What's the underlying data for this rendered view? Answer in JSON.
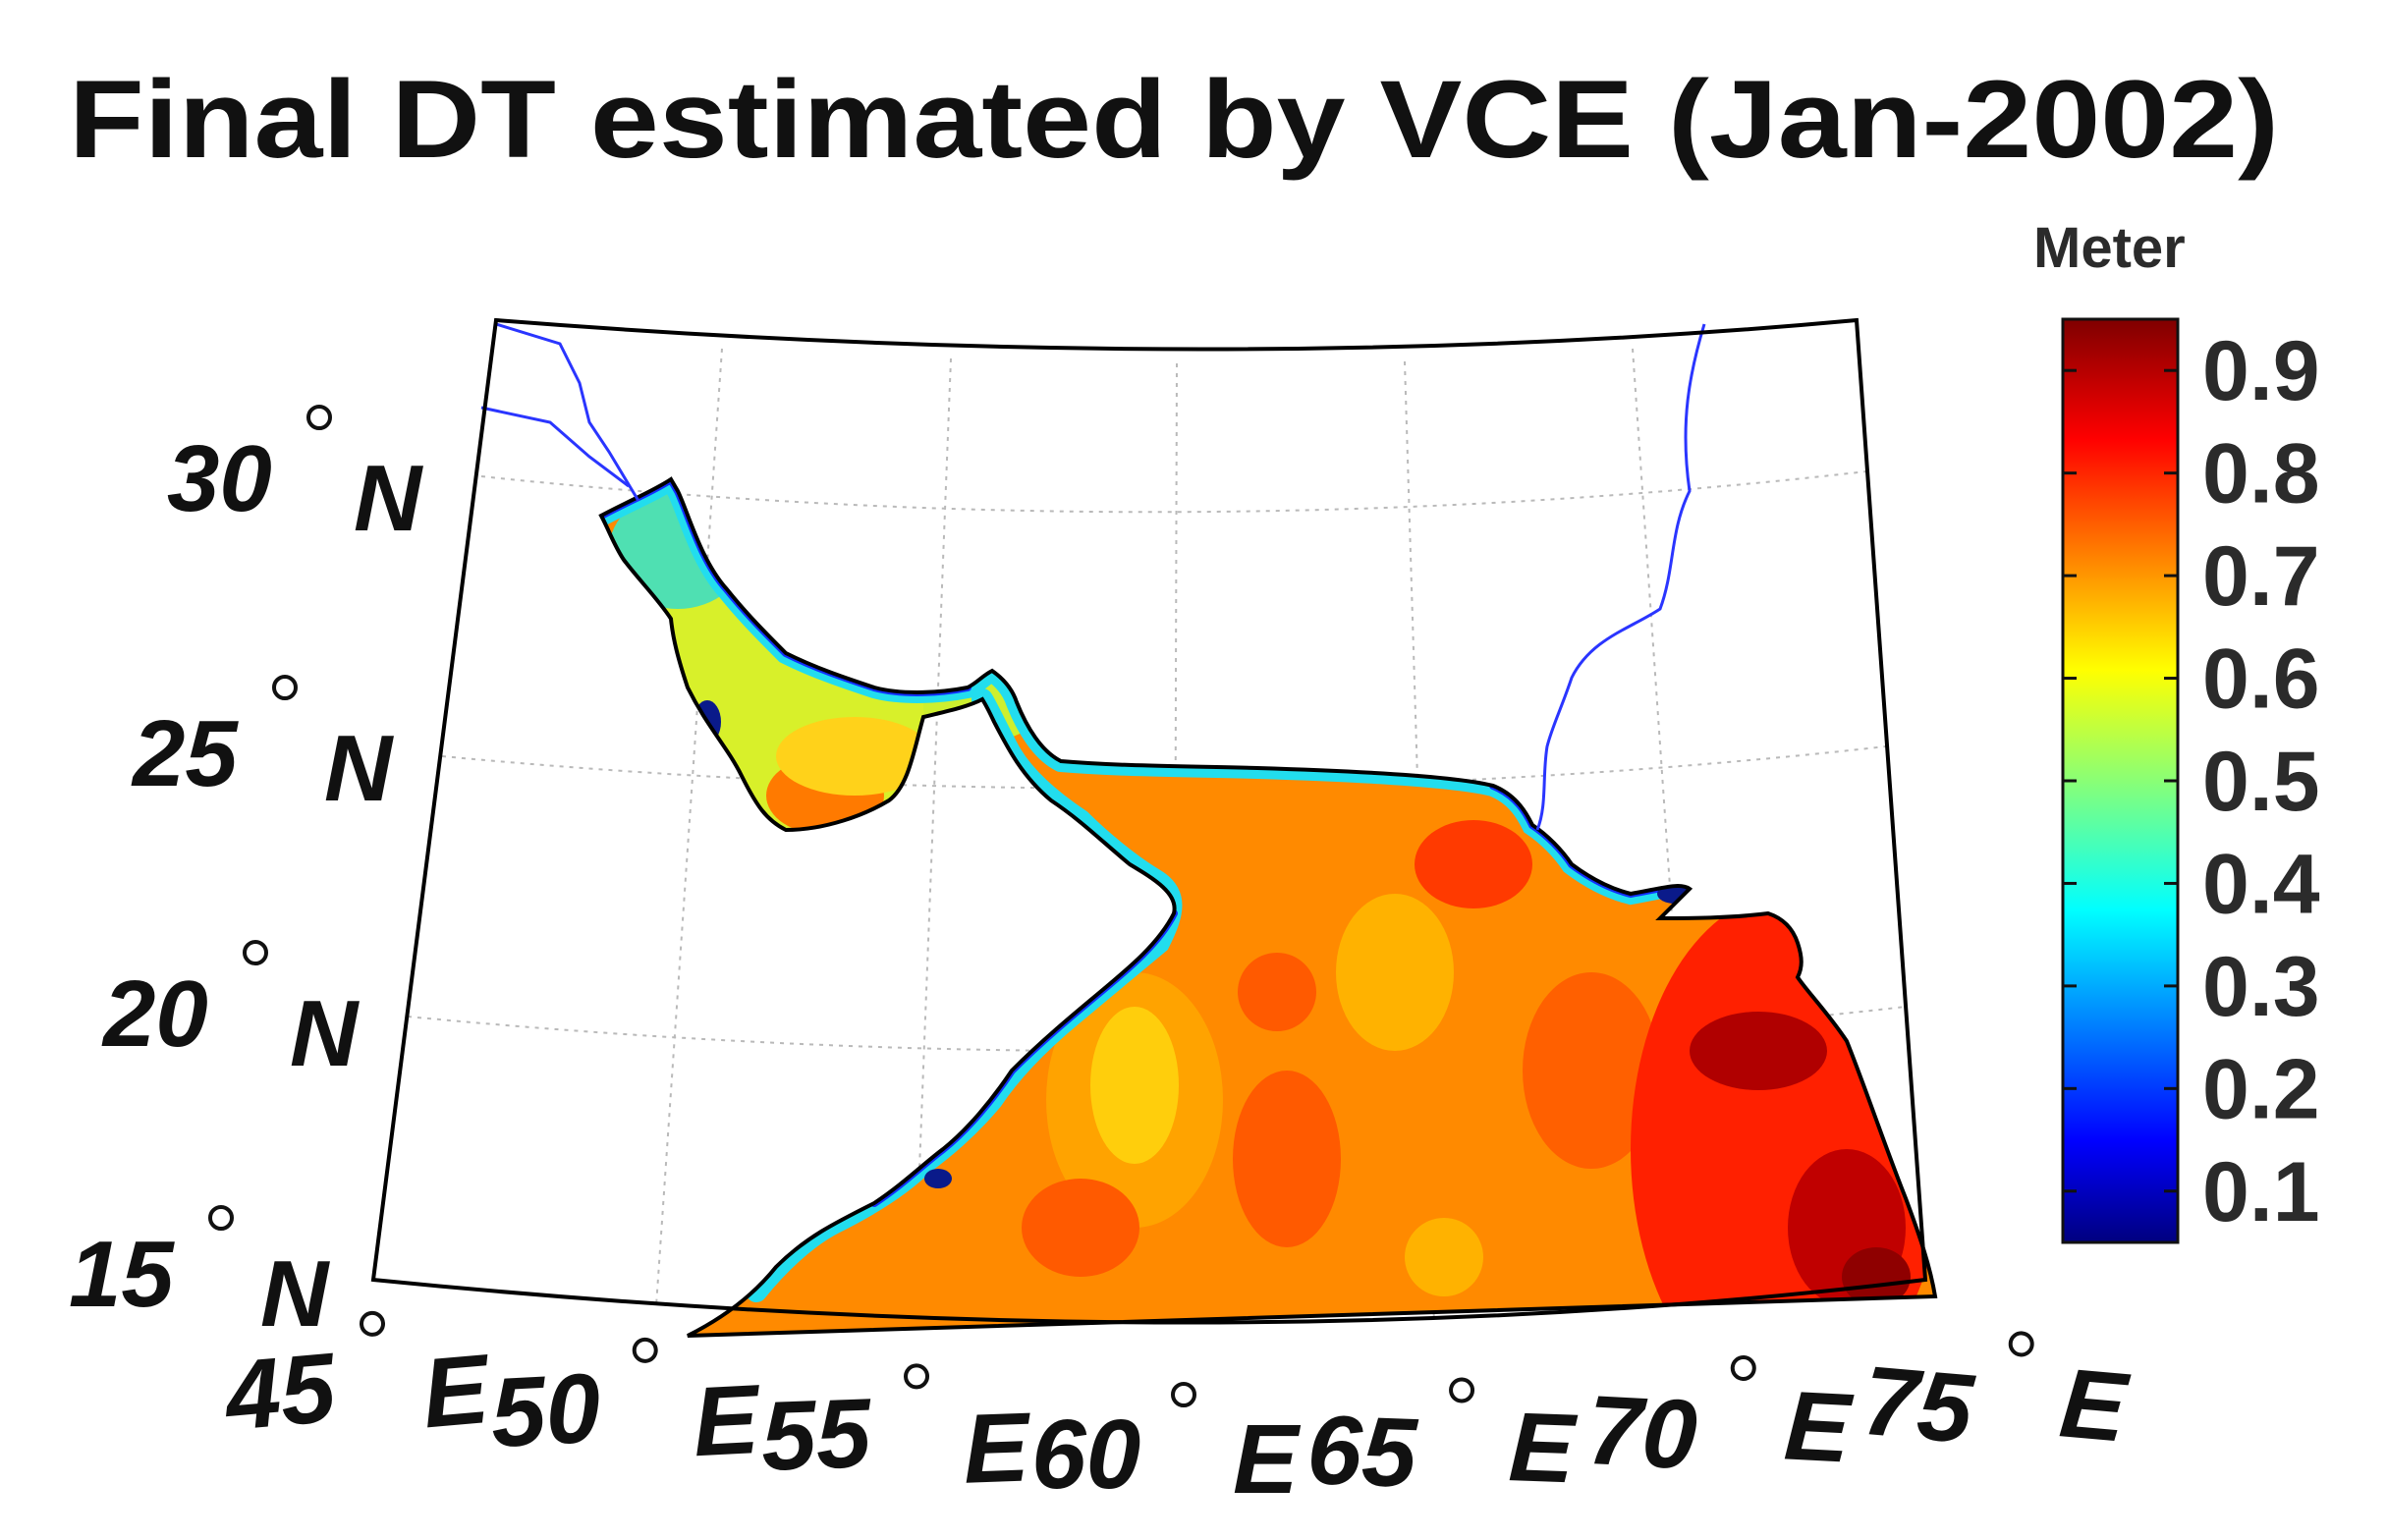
{
  "title": "Final DT estimated by VCE (Jan-2002)",
  "colorbar": {
    "unit_label": "Meter",
    "ticks": [
      "0.1",
      "0.2",
      "0.3",
      "0.4",
      "0.5",
      "0.6",
      "0.7",
      "0.8",
      "0.9"
    ],
    "range": [
      0.05,
      0.95
    ],
    "colormap": "jet"
  },
  "lat_labels": [
    {
      "deg": "30",
      "hemi": "N"
    },
    {
      "deg": "25",
      "hemi": "N"
    },
    {
      "deg": "20",
      "hemi": "N"
    },
    {
      "deg": "15",
      "hemi": "N"
    }
  ],
  "lon_labels": [
    {
      "deg": "45",
      "hemi": "E"
    },
    {
      "deg": "50",
      "hemi": "E"
    },
    {
      "deg": "55",
      "hemi": "E"
    },
    {
      "deg": "60",
      "hemi": "E"
    },
    {
      "deg": "65",
      "hemi": "E"
    },
    {
      "deg": "70",
      "hemi": "E"
    },
    {
      "deg": "75",
      "hemi": "E"
    }
  ],
  "map": {
    "projection": "conic",
    "lon_range": [
      45,
      76
    ],
    "lat_range": [
      15,
      32
    ],
    "grid": true,
    "field_range_m": [
      0.1,
      0.95
    ],
    "colors": {
      "coastline": "#000000",
      "border": "#2a35ff",
      "grid": "#b5b5b5",
      "land": "#ffffff"
    }
  }
}
